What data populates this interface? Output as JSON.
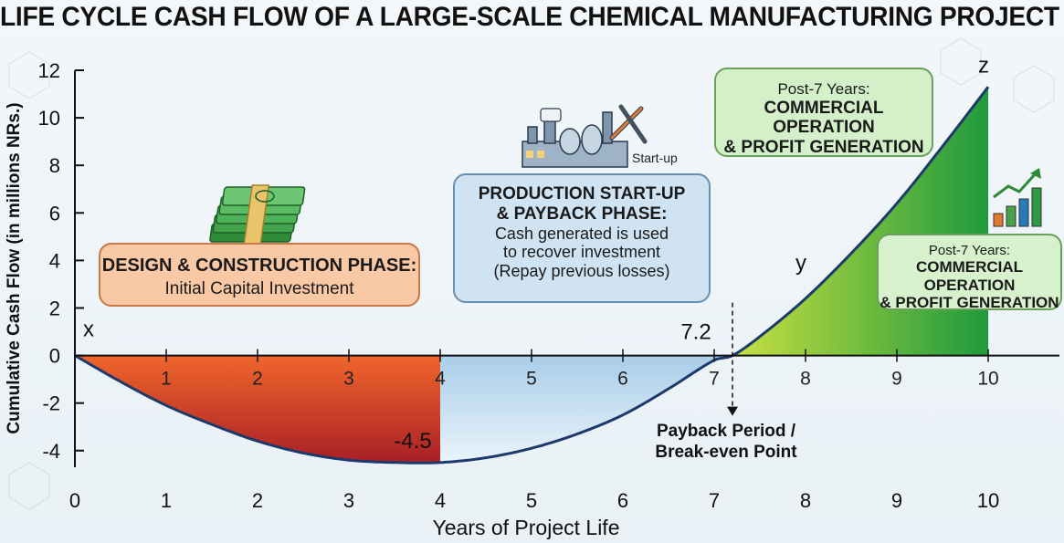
{
  "chart_data": {
    "type": "area",
    "title": "LIFE CYCLE CASH FLOW OF  A LARGE-SCALE CHEMICAL MANUFACTURING PROJECT",
    "xlabel": "Years of Project Life",
    "ylabel": "Cumulative Cash Flow (in millions NRs.)",
    "xlim": [
      0,
      10
    ],
    "ylim": [
      -4.7,
      12
    ],
    "x_ticks": [
      0,
      1,
      2,
      3,
      4,
      5,
      6,
      7,
      8,
      9,
      10
    ],
    "y_ticks": [
      -4,
      -2,
      0,
      2,
      4,
      6,
      8,
      10,
      12
    ],
    "inline_x_ticks": [
      1,
      2,
      3,
      4,
      5,
      6,
      7,
      8,
      9,
      10
    ],
    "series": [
      {
        "x": [
          0,
          0.5,
          1,
          1.5,
          2,
          2.5,
          3,
          3.5,
          4,
          4.5,
          5,
          5.5,
          6,
          6.5,
          7,
          7.2,
          7.5,
          8,
          8.5,
          9,
          9.5,
          10
        ],
        "values": [
          0,
          -1.1,
          -2.1,
          -2.9,
          -3.6,
          -4.1,
          -4.4,
          -4.5,
          -4.5,
          -4.3,
          -3.9,
          -3.3,
          -2.5,
          -1.4,
          -0.2,
          0,
          0.8,
          2.4,
          4.3,
          6.4,
          8.8,
          11.3
        ]
      }
    ],
    "annotations": [
      {
        "text": "x",
        "x": 0.15,
        "y": 0.8
      },
      {
        "text": "-4.5",
        "x": 3.7,
        "y": -3.9
      },
      {
        "text": "7.2",
        "x": 6.8,
        "y": 0.7
      },
      {
        "text": "y",
        "x": 7.95,
        "y": 3.6
      },
      {
        "text": "z",
        "x": 9.95,
        "y": 11.9
      }
    ],
    "payback_year": 7.2,
    "grid": false
  },
  "phases": {
    "design": {
      "heading": "DESIGN & CONSTRUCTION PHASE:",
      "sub": "Initial Capital Investment"
    },
    "payback": {
      "heading_1": "PRODUCTION START-UP",
      "heading_2": "& PAYBACK PHASE:",
      "line_1": "Cash generated is used",
      "line_2": "to recover investment",
      "line_3": "(Repay previous losses)"
    },
    "commercial_main": {
      "top": "Post-7 Years:",
      "h1": "COMMERCIAL OPERATION",
      "h2": "& PROFIT GENERATION"
    },
    "commercial_side": {
      "top": "Post-7 Years:",
      "h1": "COMMERCIAL OPERATION",
      "h2": "& PROFIT GENERATION"
    }
  },
  "startup_label": "Start-up",
  "payback_label": {
    "line_1": "Payback Period /",
    "line_2": "Break-even Point"
  },
  "icons": [
    "money-stack-icon",
    "factory-wrench-icon",
    "growth-chart-icon"
  ],
  "colors": {
    "loss_dark": "#a91f26",
    "loss_light": "#f0662c",
    "recovery_dark": "#a9cde9",
    "recovery_light": "#eaf4fb",
    "profit_dark": "#1f9a3c",
    "profit_light": "#c8df42",
    "curve": "#1b3a6b"
  }
}
